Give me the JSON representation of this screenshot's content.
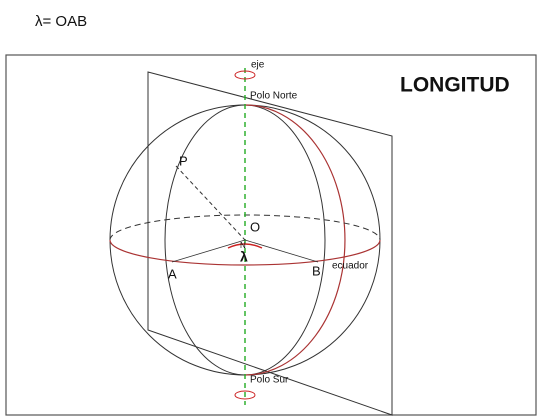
{
  "header": {
    "formula": "λ= OAB"
  },
  "diagram": {
    "title": "LONGITUD",
    "labels": {
      "axis": "eje",
      "north_pole": "Polo Norte",
      "south_pole": "Polo Sur",
      "point_p": "P",
      "origin": "O",
      "angle_marker": "N",
      "angle": "λ",
      "point_a": "A",
      "point_b": "B",
      "equator": "ecuador"
    }
  }
}
